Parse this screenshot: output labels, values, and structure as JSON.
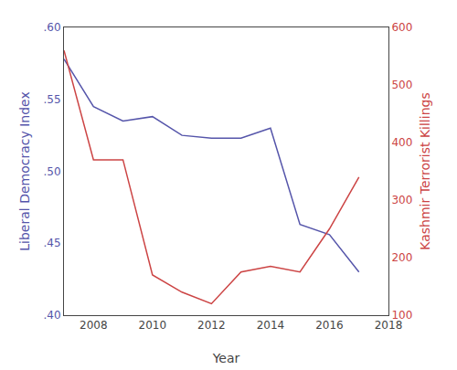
{
  "chart_data": {
    "type": "line",
    "xlabel": "Year",
    "ylabel": "Liberal Democracy Index",
    "y2label": "Kashmir Terrorist Killings",
    "x": [
      2007,
      2008,
      2009,
      2010,
      2011,
      2012,
      2013,
      2014,
      2015,
      2016,
      2017
    ],
    "series": [
      {
        "color": "#5555aa",
        "axis": "y",
        "values": [
          0.578,
          0.545,
          0.535,
          0.538,
          0.525,
          0.523,
          0.523,
          0.53,
          0.463,
          0.456,
          0.43
        ]
      },
      {
        "color": "#cc4444",
        "axis": "y2",
        "values": [
          560,
          370,
          370,
          170,
          140,
          120,
          175,
          185,
          175,
          250,
          340
        ]
      }
    ],
    "xlim": [
      2007,
      2018
    ],
    "xticks": [
      2008,
      2010,
      2012,
      2014,
      2016,
      2018
    ],
    "ylim": [
      0.4,
      0.6
    ],
    "yticks": [
      {
        "value": 0.4,
        "label": ".40"
      },
      {
        "value": 0.45,
        "label": ".45"
      },
      {
        "value": 0.5,
        "label": ".50"
      },
      {
        "value": 0.55,
        "label": ".55"
      },
      {
        "value": 0.6,
        "label": ".60"
      }
    ],
    "y2lim": [
      100,
      600
    ],
    "y2ticks": [
      100,
      200,
      300,
      400,
      500,
      600
    ],
    "grid": false
  }
}
